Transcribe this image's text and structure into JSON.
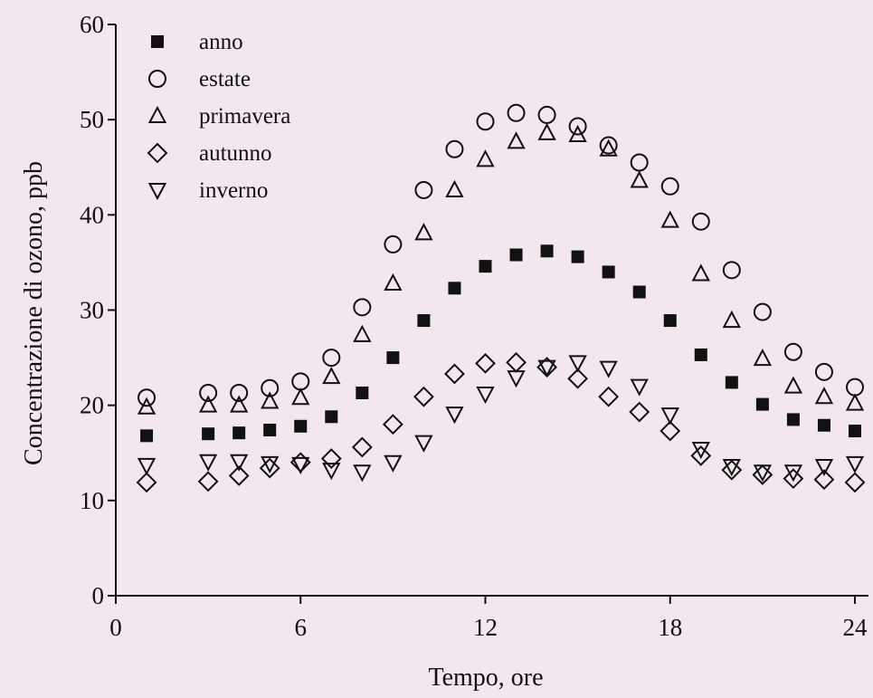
{
  "chart_data": {
    "type": "scatter",
    "title": "",
    "xlabel": "Tempo, ore",
    "ylabel": "Concentrazione di ozono, ppb",
    "xlim": [
      0,
      24
    ],
    "ylim": [
      0,
      60
    ],
    "xticks": [
      0,
      6,
      12,
      18,
      24
    ],
    "yticks": [
      0,
      10,
      20,
      30,
      40,
      50,
      60
    ],
    "grid": false,
    "legend_position": "top-left",
    "series": [
      {
        "name": "anno",
        "marker": "filled-square",
        "x": [
          1,
          3,
          4,
          5,
          6,
          7,
          8,
          9,
          10,
          11,
          12,
          13,
          14,
          15,
          16,
          17,
          18,
          19,
          20,
          21,
          22,
          23,
          24
        ],
        "y": [
          16.8,
          17.0,
          17.1,
          17.4,
          17.8,
          18.8,
          21.3,
          25.0,
          28.9,
          32.3,
          34.6,
          35.8,
          36.2,
          35.6,
          34.0,
          31.9,
          28.9,
          25.3,
          22.4,
          20.1,
          18.5,
          17.9,
          17.3
        ]
      },
      {
        "name": "estate",
        "marker": "open-circle",
        "x": [
          1,
          3,
          4,
          5,
          6,
          7,
          8,
          9,
          10,
          11,
          12,
          13,
          14,
          15,
          16,
          17,
          18,
          19,
          20,
          21,
          22,
          23,
          24
        ],
        "y": [
          20.8,
          21.3,
          21.3,
          21.8,
          22.5,
          25.0,
          30.3,
          36.9,
          42.6,
          46.9,
          49.8,
          50.7,
          50.5,
          49.3,
          47.3,
          45.5,
          43.0,
          39.3,
          34.2,
          29.8,
          25.6,
          23.5,
          21.9
        ]
      },
      {
        "name": "primavera",
        "marker": "open-triangle-up",
        "x": [
          1,
          3,
          4,
          5,
          6,
          7,
          8,
          9,
          10,
          11,
          12,
          13,
          14,
          15,
          16,
          17,
          18,
          19,
          20,
          21,
          22,
          23,
          24
        ],
        "y": [
          19.8,
          20.0,
          20.0,
          20.4,
          20.8,
          23.0,
          27.4,
          32.8,
          38.1,
          42.6,
          45.8,
          47.7,
          48.6,
          48.4,
          46.9,
          43.6,
          39.4,
          33.8,
          28.9,
          24.9,
          22.0,
          20.9,
          20.2
        ]
      },
      {
        "name": "autunno",
        "marker": "open-diamond",
        "x": [
          1,
          3,
          4,
          5,
          6,
          7,
          8,
          9,
          10,
          11,
          12,
          13,
          14,
          15,
          16,
          17,
          18,
          19,
          20,
          21,
          22,
          23,
          24
        ],
        "y": [
          11.9,
          12.0,
          12.6,
          13.4,
          14.0,
          14.4,
          15.6,
          18.0,
          20.9,
          23.3,
          24.4,
          24.5,
          24.0,
          22.8,
          20.9,
          19.3,
          17.3,
          14.7,
          13.2,
          12.7,
          12.3,
          12.2,
          11.9
        ]
      },
      {
        "name": "inverno",
        "marker": "open-triangle-down",
        "x": [
          1,
          3,
          4,
          5,
          6,
          7,
          8,
          9,
          10,
          11,
          12,
          13,
          14,
          15,
          16,
          17,
          18,
          19,
          20,
          21,
          22,
          23,
          24
        ],
        "y": [
          13.7,
          14.1,
          14.1,
          13.9,
          13.8,
          13.2,
          13.0,
          14.0,
          16.1,
          19.1,
          21.2,
          22.9,
          24.0,
          24.5,
          23.9,
          22.0,
          19.0,
          15.4,
          13.6,
          13.0,
          13.0,
          13.6,
          13.9
        ]
      }
    ]
  }
}
